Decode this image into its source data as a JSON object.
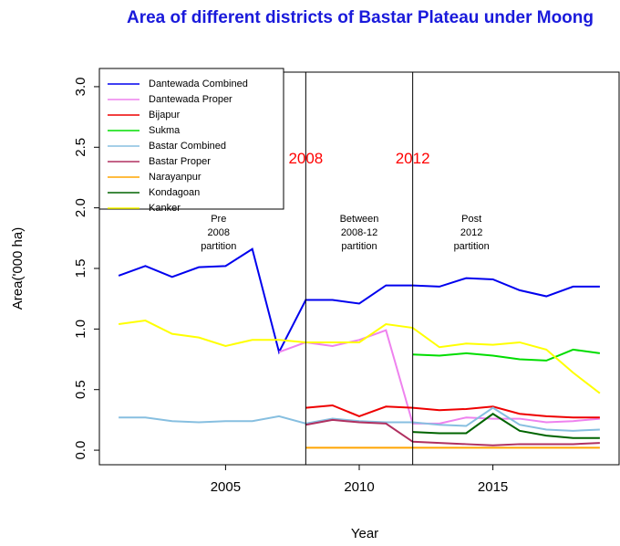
{
  "chart_data": {
    "type": "line",
    "title": "Area of different districts of Bastar Plateau under Moong",
    "x_label": "Year",
    "y_label": "Area('000 ha)",
    "x": [
      2001,
      2002,
      2003,
      2004,
      2005,
      2006,
      2007,
      2008,
      2009,
      2010,
      2011,
      2012,
      2013,
      2014,
      2015,
      2016,
      2017,
      2018,
      2019
    ],
    "series": [
      {
        "name": "Dantewada Combined",
        "color": "#0000ee",
        "values": [
          1.44,
          1.52,
          1.43,
          1.51,
          1.52,
          1.66,
          0.81,
          1.24,
          1.24,
          1.21,
          1.36,
          1.36,
          1.35,
          1.42,
          1.41,
          1.32,
          1.27,
          1.35,
          1.35
        ]
      },
      {
        "name": "Dantewada Proper",
        "color": "#ee82ee",
        "values": [
          null,
          null,
          null,
          null,
          null,
          null,
          0.81,
          0.89,
          0.86,
          0.91,
          0.99,
          0.22,
          0.22,
          0.27,
          0.26,
          0.26,
          0.23,
          0.24,
          0.26
        ]
      },
      {
        "name": "Bijapur",
        "color": "#ee0000",
        "values": [
          null,
          null,
          null,
          null,
          null,
          null,
          null,
          0.35,
          0.37,
          0.28,
          0.36,
          0.35,
          0.33,
          0.34,
          0.36,
          0.3,
          0.28,
          0.27,
          0.27
        ]
      },
      {
        "name": "Sukma",
        "color": "#00dd00",
        "values": [
          null,
          null,
          null,
          null,
          null,
          null,
          null,
          null,
          null,
          null,
          null,
          0.79,
          0.78,
          0.8,
          0.78,
          0.75,
          0.74,
          0.83,
          0.8
        ]
      },
      {
        "name": "Bastar Combined",
        "color": "#87bfe0",
        "values": [
          0.27,
          0.27,
          0.24,
          0.23,
          0.24,
          0.24,
          0.28,
          0.22,
          0.26,
          0.24,
          0.23,
          0.23,
          0.21,
          0.2,
          0.35,
          0.21,
          0.17,
          0.16,
          0.17
        ]
      },
      {
        "name": "Bastar Proper",
        "color": "#b03060",
        "values": [
          null,
          null,
          null,
          null,
          null,
          null,
          null,
          0.21,
          0.25,
          0.23,
          0.22,
          0.07,
          0.06,
          0.05,
          0.04,
          0.05,
          0.05,
          0.05,
          0.06
        ]
      },
      {
        "name": "Narayanpur",
        "color": "#ffa500",
        "values": [
          null,
          null,
          null,
          null,
          null,
          null,
          null,
          0.02,
          0.02,
          0.02,
          0.02,
          0.02,
          0.02,
          0.02,
          0.02,
          0.02,
          0.02,
          0.02,
          0.02
        ]
      },
      {
        "name": "Kondagoan",
        "color": "#006400",
        "values": [
          null,
          null,
          null,
          null,
          null,
          null,
          null,
          null,
          null,
          null,
          null,
          0.15,
          0.14,
          0.14,
          0.3,
          0.16,
          0.12,
          0.1,
          0.1
        ]
      },
      {
        "name": "Kanker",
        "color": "#ffff00",
        "values": [
          1.04,
          1.07,
          0.96,
          0.93,
          0.86,
          0.91,
          0.91,
          0.89,
          0.89,
          0.89,
          1.04,
          1.01,
          0.85,
          0.88,
          0.87,
          0.89,
          0.83,
          0.64,
          0.47
        ]
      }
    ],
    "vlines": [
      2008,
      2012
    ],
    "vline_label_color": "#ff0000",
    "annotations": [
      {
        "lines": [
          "Pre",
          "2008",
          "partition"
        ]
      },
      {
        "lines": [
          "Between",
          "2008-12",
          "partition"
        ]
      },
      {
        "lines": [
          "Post",
          "2012",
          "partition"
        ]
      }
    ],
    "xlim": [
      2000.28,
      2019.72
    ],
    "xticks": [
      2005,
      2010,
      2015
    ],
    "ylim": [
      -0.12,
      3.12
    ],
    "yticks": [
      {
        "value": 0,
        "label": "0.0"
      },
      {
        "value": 0.5,
        "label": "0.5"
      },
      {
        "value": 1,
        "label": "1.0"
      },
      {
        "value": 1.5,
        "label": "1.5"
      },
      {
        "value": 2,
        "label": "2.0"
      },
      {
        "value": 2.5,
        "label": "2.5"
      },
      {
        "value": 3,
        "label": "3.0"
      }
    ],
    "legend": "top-left"
  }
}
